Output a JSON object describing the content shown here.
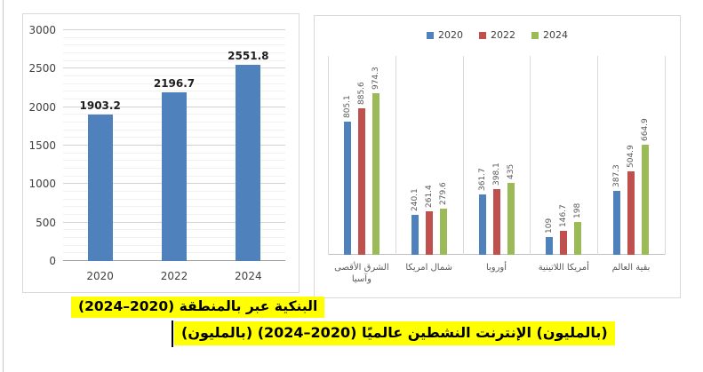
{
  "page": {
    "background": "#ffffff"
  },
  "captions": {
    "line1": "البنكية عبر بالمنطقة (2020–2024)",
    "line2": "(بالمليون) الإنترنت النشطين عالميًا (2020–2024) (بالمليون)",
    "highlight_color": "#ffff00"
  },
  "chart_data": [
    {
      "type": "bar",
      "title": "البنكية عبر بالمنطقة (2020–2024) (بالمليون)",
      "categories": [
        "2020",
        "2022",
        "2024"
      ],
      "values": [
        1903.2,
        2196.7,
        2551.8
      ],
      "data_labels": [
        "1903.2",
        "2196.7",
        "2551.8"
      ],
      "xlabel": "",
      "ylabel": "",
      "ylim": [
        0,
        3000
      ],
      "ytick_step": 500,
      "y_minor_step": 100,
      "ytick_labels": [
        "0",
        "500",
        "1000",
        "1500",
        "2000",
        "2500",
        "3000"
      ],
      "bar_color": "#4f81bd",
      "grid": true,
      "legend": false
    },
    {
      "type": "bar",
      "title": "الإنترنت النشطين عالميًا (2020–2024) (بالمليون)",
      "categories": [
        "الشرق الأقصى وآسيا",
        "شمال امريكا",
        "أوروبا",
        "أمريكا اللاتينية",
        "بقية العالم"
      ],
      "series": [
        {
          "name": "2020",
          "color": "#4f81bd",
          "values": [
            805.1,
            240.1,
            361.7,
            109,
            387.3
          ]
        },
        {
          "name": "2022",
          "color": "#c0504d",
          "values": [
            885.6,
            261.4,
            398.1,
            146.7,
            504.9
          ]
        },
        {
          "name": "2024",
          "color": "#9bbb59",
          "values": [
            974.3,
            279.6,
            435,
            198,
            664.9
          ]
        }
      ],
      "xlabel": "",
      "ylabel": "",
      "ylim": [
        0,
        1200
      ],
      "legend_position": "top",
      "grid": "category-separators"
    }
  ]
}
